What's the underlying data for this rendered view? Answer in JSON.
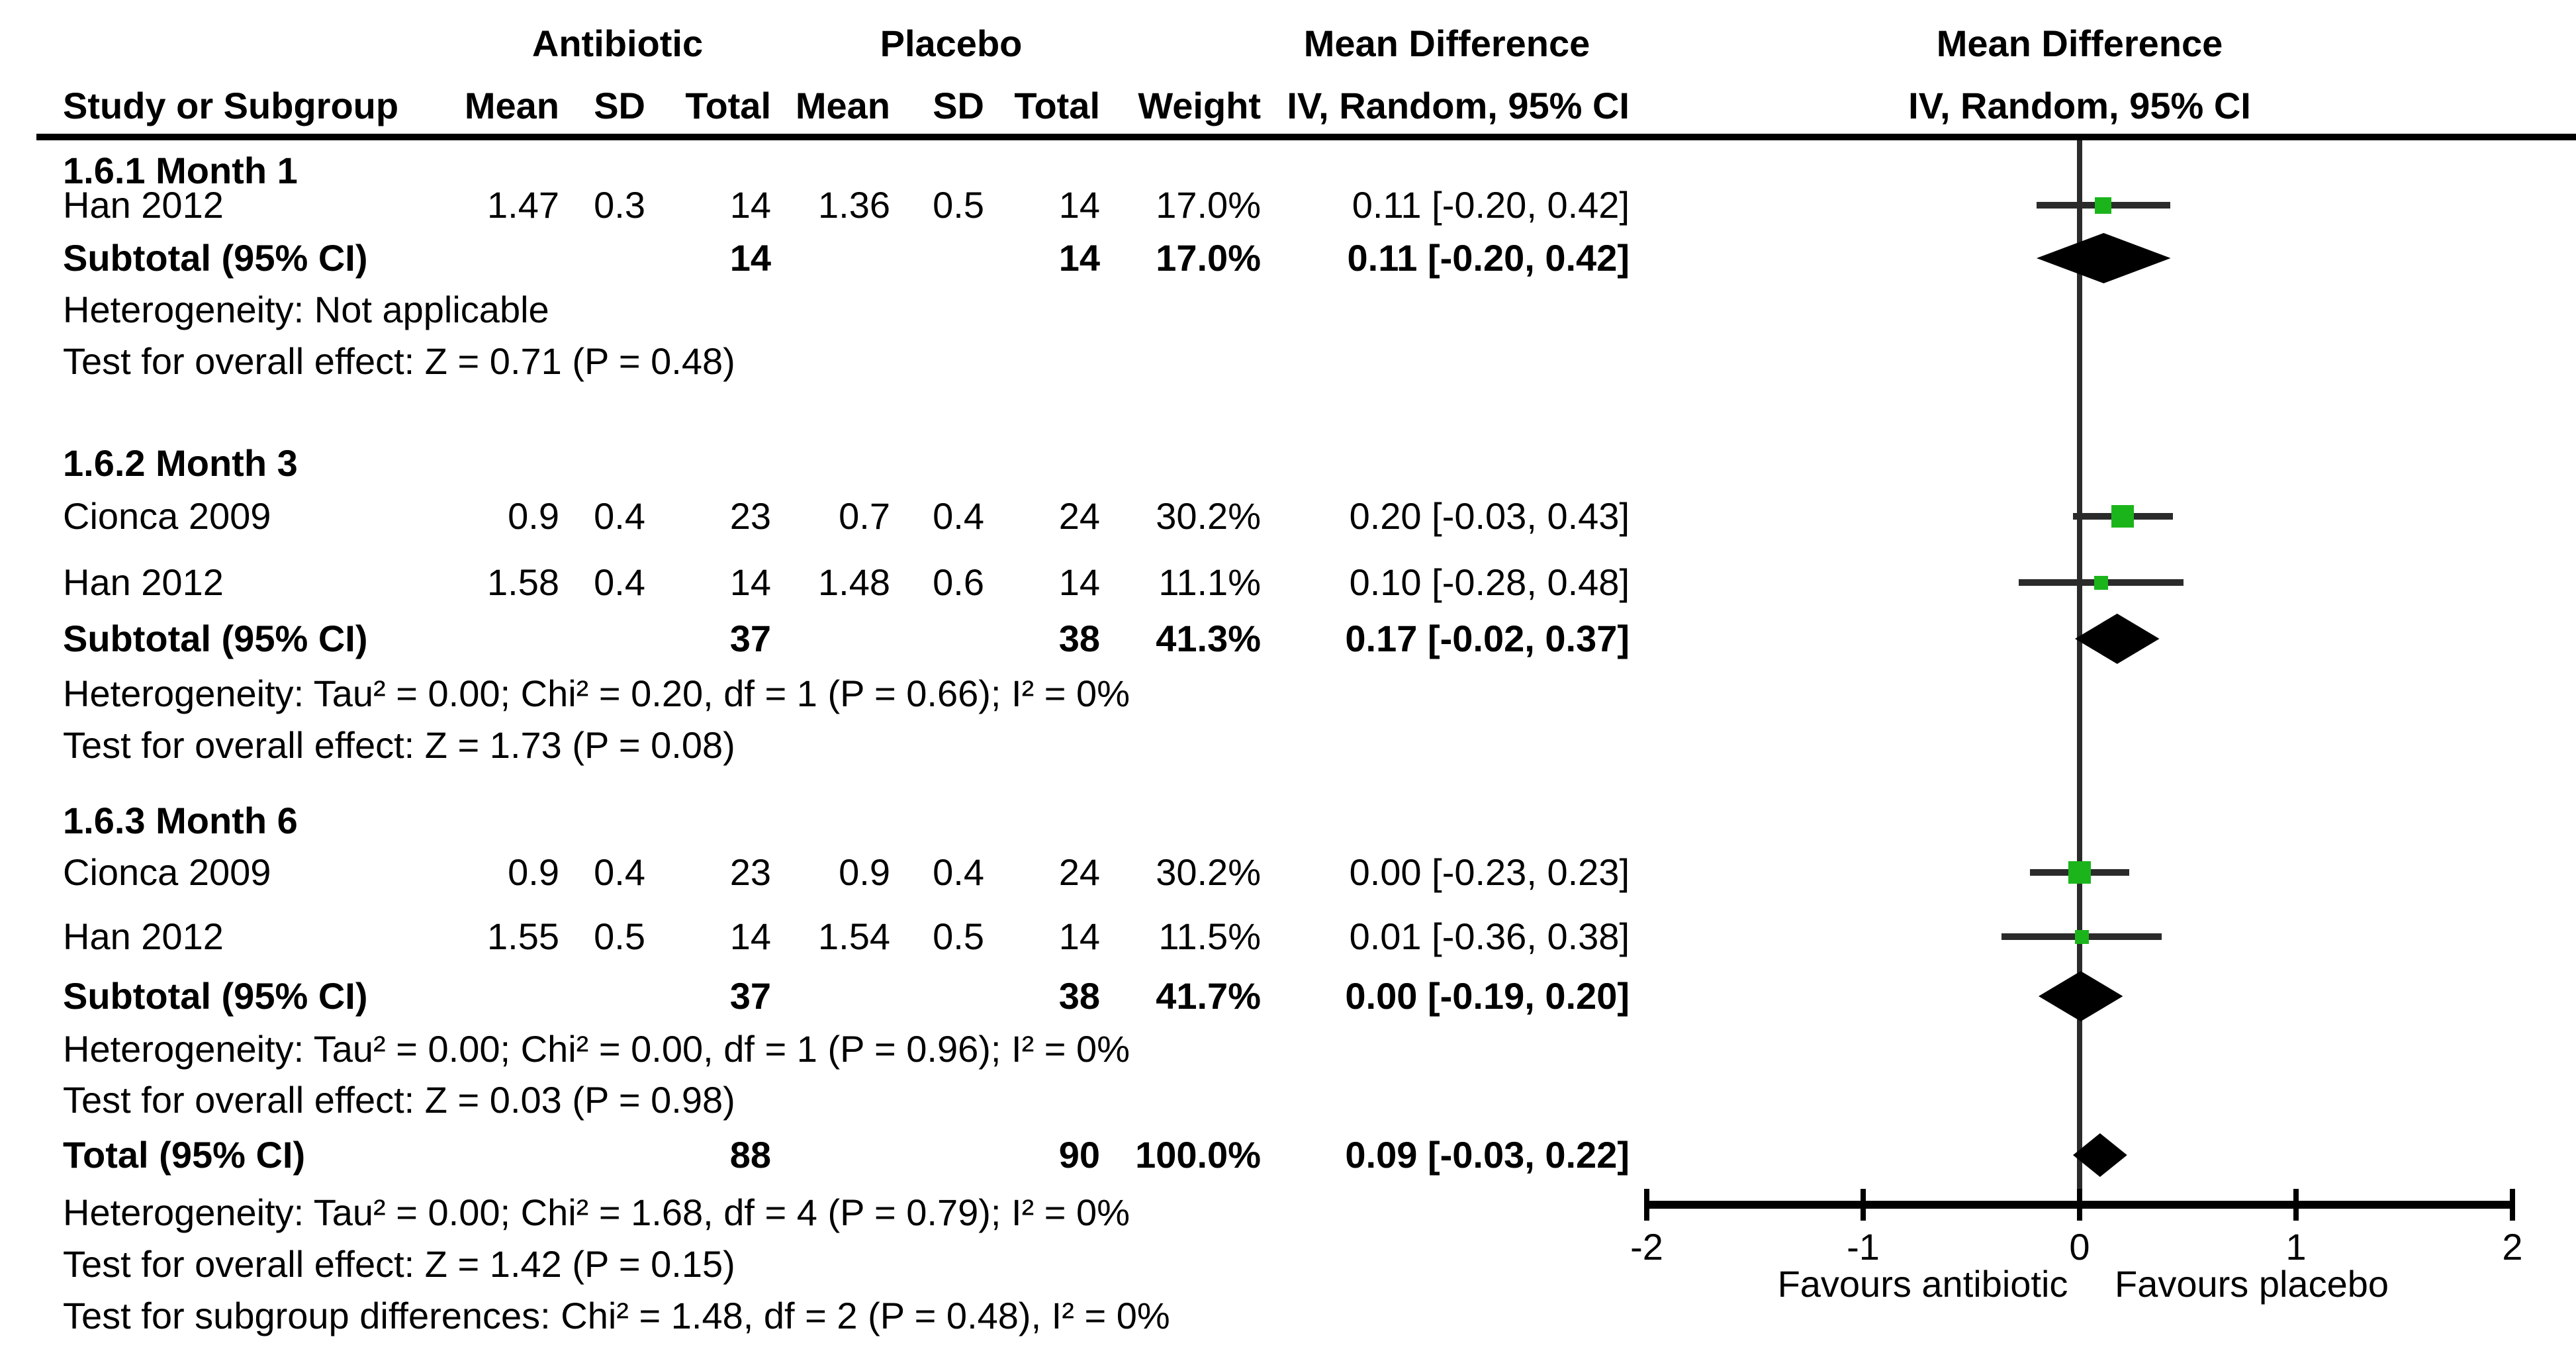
{
  "header": {
    "group1_label": "Antibiotic",
    "group2_label": "Placebo",
    "effect_label": "Mean Difference",
    "effect_sublabel": "IV, Random, 95% CI",
    "plot_label": "Mean Difference",
    "plot_sublabel": "IV, Random, 95% CI",
    "col_study": "Study or Subgroup",
    "col_mean": "Mean",
    "col_sd": "SD",
    "col_total": "Total",
    "col_weight": "Weight"
  },
  "chart_data": {
    "type": "forest",
    "effect_measure": "Mean Difference",
    "model": "IV, Random, 95% CI",
    "x_axis": {
      "ticks": [
        -2,
        -1,
        0,
        1,
        2
      ],
      "tick_labels": [
        "-2",
        "-1",
        "0",
        "1",
        "2"
      ],
      "xlim": [
        -2,
        2
      ],
      "favours_left": "Favours antibiotic",
      "favours_right": "Favours placebo"
    },
    "sections": [
      {
        "title": "1.6.1 Month 1",
        "studies": [
          {
            "name": "Han 2012",
            "mean1": "1.47",
            "sd1": "0.3",
            "total1": "14",
            "mean2": "1.36",
            "sd2": "0.5",
            "total2": "14",
            "weight": "17.0%",
            "weight_num": 17.0,
            "ci_text": "0.11 [-0.20, 0.42]",
            "est": 0.11,
            "lo": -0.2,
            "hi": 0.42
          }
        ],
        "subtotal": {
          "label": "Subtotal (95% CI)",
          "total1": "14",
          "total2": "14",
          "weight": "17.0%",
          "ci_text": "0.11 [-0.20, 0.42]",
          "est": 0.11,
          "lo": -0.2,
          "hi": 0.42
        },
        "heterogeneity": "Heterogeneity: Not applicable",
        "overall_effect": "Test for overall effect: Z = 0.71 (P = 0.48)"
      },
      {
        "title": "1.6.2 Month 3",
        "studies": [
          {
            "name": "Cionca 2009",
            "mean1": "0.9",
            "sd1": "0.4",
            "total1": "23",
            "mean2": "0.7",
            "sd2": "0.4",
            "total2": "24",
            "weight": "30.2%",
            "weight_num": 30.2,
            "ci_text": "0.20 [-0.03, 0.43]",
            "est": 0.2,
            "lo": -0.03,
            "hi": 0.43
          },
          {
            "name": "Han 2012",
            "mean1": "1.58",
            "sd1": "0.4",
            "total1": "14",
            "mean2": "1.48",
            "sd2": "0.6",
            "total2": "14",
            "weight": "11.1%",
            "weight_num": 11.1,
            "ci_text": "0.10 [-0.28, 0.48]",
            "est": 0.1,
            "lo": -0.28,
            "hi": 0.48
          }
        ],
        "subtotal": {
          "label": "Subtotal (95% CI)",
          "total1": "37",
          "total2": "38",
          "weight": "41.3%",
          "ci_text": "0.17 [-0.02, 0.37]",
          "est": 0.17,
          "lo": -0.02,
          "hi": 0.37
        },
        "heterogeneity": "Heterogeneity: Tau² = 0.00; Chi² = 0.20, df = 1 (P = 0.66); I² = 0%",
        "overall_effect": "Test for overall effect: Z = 1.73 (P = 0.08)"
      },
      {
        "title": "1.6.3 Month 6",
        "studies": [
          {
            "name": "Cionca 2009",
            "mean1": "0.9",
            "sd1": "0.4",
            "total1": "23",
            "mean2": "0.9",
            "sd2": "0.4",
            "total2": "24",
            "weight": "30.2%",
            "weight_num": 30.2,
            "ci_text": "0.00 [-0.23, 0.23]",
            "est": 0.0,
            "lo": -0.23,
            "hi": 0.23
          },
          {
            "name": "Han 2012",
            "mean1": "1.55",
            "sd1": "0.5",
            "total1": "14",
            "mean2": "1.54",
            "sd2": "0.5",
            "total2": "14",
            "weight": "11.5%",
            "weight_num": 11.5,
            "ci_text": "0.01 [-0.36, 0.38]",
            "est": 0.01,
            "lo": -0.36,
            "hi": 0.38
          }
        ],
        "subtotal": {
          "label": "Subtotal (95% CI)",
          "total1": "37",
          "total2": "38",
          "weight": "41.7%",
          "ci_text": "0.00 [-0.19, 0.20]",
          "est": 0.0,
          "lo": -0.19,
          "hi": 0.2
        },
        "heterogeneity": "Heterogeneity: Tau² = 0.00; Chi² = 0.00, df = 1 (P = 0.96); I² = 0%",
        "overall_effect": "Test for overall effect: Z = 0.03 (P = 0.98)"
      }
    ],
    "total": {
      "label": "Total (95% CI)",
      "total1": "88",
      "total2": "90",
      "weight": "100.0%",
      "ci_text": "0.09 [-0.03, 0.22]",
      "est": 0.09,
      "lo": -0.03,
      "hi": 0.22
    },
    "footer": {
      "heterogeneity": "Heterogeneity: Tau² = 0.00; Chi² = 1.68, df = 4 (P = 0.79); I² = 0%",
      "overall_effect": "Test for overall effect: Z = 1.42 (P = 0.15)",
      "subgroup_diff": "Test for subgroup differences: Chi² = 1.48, df = 2 (P = 0.48), I² = 0%"
    }
  },
  "colors": {
    "marker_green": "#1BB51B",
    "ci_line": "#2b2b2b",
    "diamond": "#000000",
    "text": "#000000",
    "background": "#FFFFFF"
  }
}
